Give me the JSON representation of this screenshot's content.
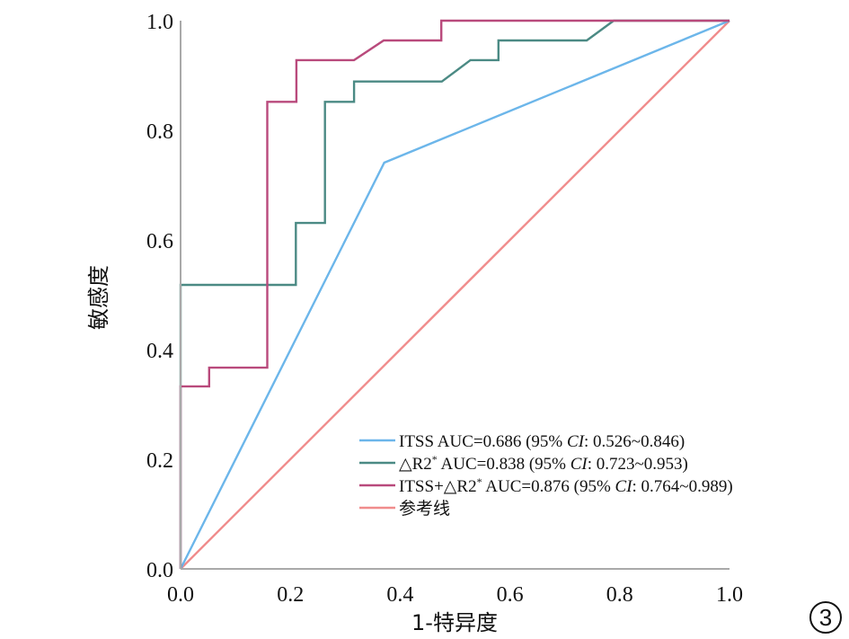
{
  "chart_data": {
    "type": "line",
    "title": "",
    "xlabel": "1-特异度",
    "ylabel": "敏感度",
    "xlim": [
      0,
      1
    ],
    "ylim": [
      0,
      1
    ],
    "grid": false,
    "xticks": [
      "0.0",
      "0.2",
      "0.4",
      "0.6",
      "0.8",
      "1.0"
    ],
    "yticks": [
      "0.0",
      "0.2",
      "0.4",
      "0.6",
      "0.8",
      "1.0"
    ],
    "xtick_values": [
      0,
      0.2,
      0.4,
      0.6,
      0.8,
      1.0
    ],
    "ytick_values": [
      0,
      0.2,
      0.4,
      0.6,
      0.8,
      1.0
    ],
    "legend_position": "bottom-right",
    "panel_label": "3",
    "series": [
      {
        "name": "reference",
        "legend": [
          "参考线"
        ],
        "color": "#f08c8c",
        "x": [
          0,
          1
        ],
        "y": [
          0,
          1
        ]
      },
      {
        "name": "ITSS",
        "legend": [
          "ITSS AUC=0.686 (95% ",
          "CI",
          ": 0.526~0.846)"
        ],
        "color": "#6cb6ea",
        "x": [
          0,
          0.371,
          1
        ],
        "y": [
          0,
          0.741,
          1
        ]
      },
      {
        "name": "ΔR2*",
        "legend": [
          "△R2",
          "*",
          " AUC=0.838 (95% ",
          "CI",
          ": 0.723~0.953)"
        ],
        "color": "#4b8a84",
        "x": [
          0,
          0,
          0.21,
          0.21,
          0.263,
          0.263,
          0.316,
          0.316,
          0.476,
          0.528,
          0.579,
          0.579,
          0.74,
          0.789,
          1
        ],
        "y": [
          0,
          0.518,
          0.518,
          0.631,
          0.631,
          0.852,
          0.852,
          0.889,
          0.889,
          0.928,
          0.928,
          0.964,
          0.964,
          1,
          1
        ]
      },
      {
        "name": "ITSS+ΔR2*",
        "legend": [
          "ITSS+△R2",
          "*",
          " AUC=0.876 (95% ",
          "CI",
          ": 0.764~0.989)"
        ],
        "color": "#b94a7c",
        "x": [
          0,
          0,
          0.052,
          0.052,
          0.158,
          0.158,
          0.211,
          0.211,
          0.316,
          0.37,
          0.475,
          0.475,
          1
        ],
        "y": [
          0,
          0.333,
          0.333,
          0.367,
          0.367,
          0.852,
          0.852,
          0.928,
          0.928,
          0.964,
          0.964,
          1,
          1
        ]
      }
    ],
    "legend_order": [
      "ITSS",
      "ΔR2*",
      "ITSS+ΔR2*",
      "reference"
    ],
    "axis_color": "#a9a9a9"
  }
}
